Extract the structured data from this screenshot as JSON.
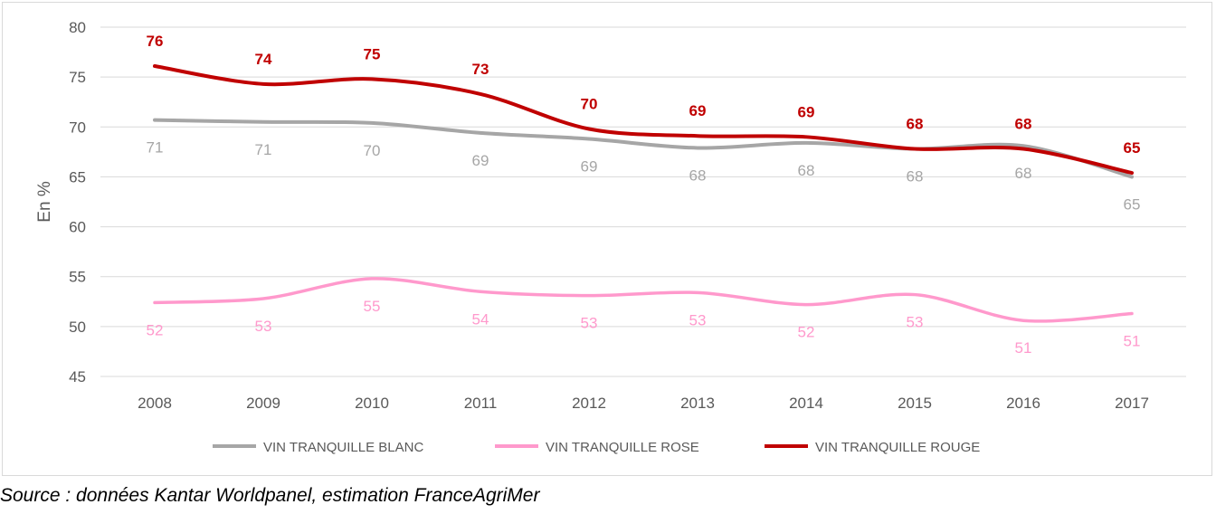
{
  "chart_data": {
    "type": "line",
    "categories": [
      "2008",
      "2009",
      "2010",
      "2011",
      "2012",
      "2013",
      "2014",
      "2015",
      "2016",
      "2017"
    ],
    "ylabel": "En %",
    "ylim": [
      45,
      80
    ],
    "yticks": [
      45,
      50,
      55,
      60,
      65,
      70,
      75,
      80
    ],
    "grid": true,
    "series": [
      {
        "name": "VIN TRANQUILLE BLANC",
        "color": "#a6a6a6",
        "values": [
          70.7,
          70.5,
          70.4,
          69.4,
          68.8,
          67.9,
          68.4,
          67.8,
          68.1,
          65.0
        ],
        "labels": [
          "71",
          "71",
          "70",
          "69",
          "69",
          "68",
          "68",
          "68",
          "68",
          "65"
        ],
        "label_position": "below"
      },
      {
        "name": "VIN TRANQUILLE ROSE",
        "color": "#ff99cc",
        "values": [
          52.4,
          52.8,
          54.8,
          53.5,
          53.1,
          53.4,
          52.2,
          53.2,
          50.6,
          51.3
        ],
        "labels": [
          "52",
          "53",
          "55",
          "54",
          "53",
          "53",
          "52",
          "53",
          "51",
          "51"
        ],
        "label_position": "below"
      },
      {
        "name": "VIN TRANQUILLE ROUGE",
        "color": "#c00000",
        "values": [
          76.1,
          74.3,
          74.8,
          73.3,
          69.8,
          69.1,
          69.0,
          67.8,
          67.8,
          65.4
        ],
        "labels": [
          "76",
          "74",
          "75",
          "73",
          "70",
          "69",
          "69",
          "68",
          "68",
          "65"
        ],
        "label_position": "above"
      }
    ]
  },
  "source": "Source : données Kantar Worldpanel, estimation FranceAgriMer"
}
